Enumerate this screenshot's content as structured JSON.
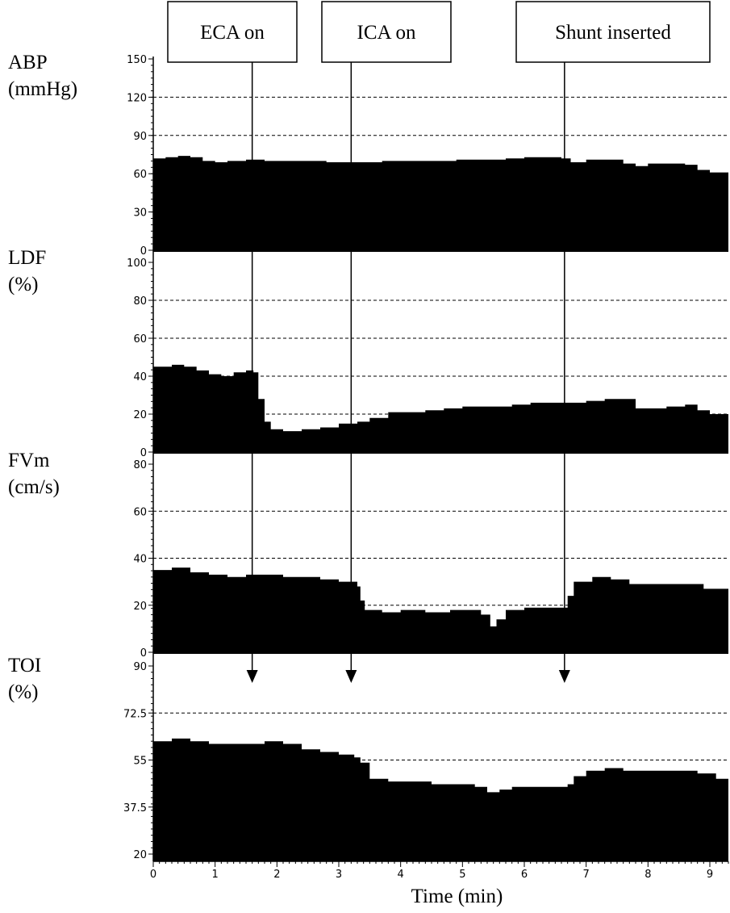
{
  "chart_data": {
    "type": "area",
    "xlabel": "Time (min)",
    "xlim": [
      0,
      9.3
    ],
    "x_ticks": [
      "0",
      "1",
      "2",
      "3",
      "4",
      "5",
      "6",
      "7",
      "8",
      "9"
    ],
    "events": [
      {
        "label": "ECA on",
        "t": 1.6
      },
      {
        "label": "ICA on",
        "t": 3.2
      },
      {
        "label": "Shunt inserted",
        "t": 6.65
      }
    ],
    "panels": [
      {
        "label_line1": "ABP",
        "label_line2": "(mmHg)",
        "ylim": [
          0,
          150
        ],
        "y_ticks": [
          "0",
          "30",
          "60",
          "90",
          "120",
          "150"
        ],
        "grid_values": [
          60,
          90,
          120
        ],
        "series": [
          {
            "t": 0,
            "v": 72
          },
          {
            "t": 0.2,
            "v": 73
          },
          {
            "t": 0.4,
            "v": 74
          },
          {
            "t": 0.6,
            "v": 73
          },
          {
            "t": 0.8,
            "v": 70
          },
          {
            "t": 1.0,
            "v": 69
          },
          {
            "t": 1.2,
            "v": 70
          },
          {
            "t": 1.5,
            "v": 71
          },
          {
            "t": 1.8,
            "v": 70
          },
          {
            "t": 2.1,
            "v": 70
          },
          {
            "t": 2.4,
            "v": 70
          },
          {
            "t": 2.8,
            "v": 69
          },
          {
            "t": 3.1,
            "v": 69
          },
          {
            "t": 3.4,
            "v": 69
          },
          {
            "t": 3.7,
            "v": 70
          },
          {
            "t": 4.1,
            "v": 70
          },
          {
            "t": 4.5,
            "v": 70
          },
          {
            "t": 4.9,
            "v": 71
          },
          {
            "t": 5.3,
            "v": 71
          },
          {
            "t": 5.7,
            "v": 72
          },
          {
            "t": 6.0,
            "v": 73
          },
          {
            "t": 6.3,
            "v": 73
          },
          {
            "t": 6.6,
            "v": 72
          },
          {
            "t": 6.75,
            "v": 69
          },
          {
            "t": 7.0,
            "v": 71
          },
          {
            "t": 7.3,
            "v": 71
          },
          {
            "t": 7.6,
            "v": 68
          },
          {
            "t": 7.8,
            "v": 66
          },
          {
            "t": 8.0,
            "v": 68
          },
          {
            "t": 8.3,
            "v": 68
          },
          {
            "t": 8.6,
            "v": 67
          },
          {
            "t": 8.8,
            "v": 63
          },
          {
            "t": 9.0,
            "v": 61
          },
          {
            "t": 9.3,
            "v": 60
          }
        ]
      },
      {
        "label_line1": "LDF",
        "label_line2": "(%)",
        "ylim": [
          0,
          100
        ],
        "y_ticks": [
          "0",
          "20",
          "40",
          "60",
          "80",
          "100"
        ],
        "grid_values": [
          20,
          40,
          60,
          80
        ],
        "series": [
          {
            "t": 0,
            "v": 45
          },
          {
            "t": 0.3,
            "v": 46
          },
          {
            "t": 0.5,
            "v": 45
          },
          {
            "t": 0.7,
            "v": 43
          },
          {
            "t": 0.9,
            "v": 41
          },
          {
            "t": 1.1,
            "v": 40
          },
          {
            "t": 1.3,
            "v": 42
          },
          {
            "t": 1.5,
            "v": 43
          },
          {
            "t": 1.62,
            "v": 42
          },
          {
            "t": 1.7,
            "v": 28
          },
          {
            "t": 1.8,
            "v": 16
          },
          {
            "t": 1.9,
            "v": 12
          },
          {
            "t": 2.1,
            "v": 11
          },
          {
            "t": 2.4,
            "v": 12
          },
          {
            "t": 2.7,
            "v": 13
          },
          {
            "t": 3.0,
            "v": 15
          },
          {
            "t": 3.3,
            "v": 16
          },
          {
            "t": 3.5,
            "v": 18
          },
          {
            "t": 3.8,
            "v": 21
          },
          {
            "t": 4.1,
            "v": 21
          },
          {
            "t": 4.4,
            "v": 22
          },
          {
            "t": 4.7,
            "v": 23
          },
          {
            "t": 5.0,
            "v": 24
          },
          {
            "t": 5.4,
            "v": 24
          },
          {
            "t": 5.8,
            "v": 25
          },
          {
            "t": 6.1,
            "v": 26
          },
          {
            "t": 6.4,
            "v": 26
          },
          {
            "t": 6.7,
            "v": 26
          },
          {
            "t": 7.0,
            "v": 27
          },
          {
            "t": 7.3,
            "v": 28
          },
          {
            "t": 7.5,
            "v": 28
          },
          {
            "t": 7.8,
            "v": 23
          },
          {
            "t": 8.0,
            "v": 23
          },
          {
            "t": 8.3,
            "v": 24
          },
          {
            "t": 8.6,
            "v": 25
          },
          {
            "t": 8.8,
            "v": 22
          },
          {
            "t": 9.0,
            "v": 20
          },
          {
            "t": 9.3,
            "v": 20
          }
        ]
      },
      {
        "label_line1": "FVm",
        "label_line2": "(cm/s)",
        "ylim": [
          0,
          80
        ],
        "y_ticks": [
          "0",
          "20",
          "40",
          "60",
          "80"
        ],
        "grid_values": [
          20,
          40,
          60
        ],
        "series": [
          {
            "t": 0,
            "v": 35
          },
          {
            "t": 0.3,
            "v": 36
          },
          {
            "t": 0.6,
            "v": 34
          },
          {
            "t": 0.9,
            "v": 33
          },
          {
            "t": 1.2,
            "v": 32
          },
          {
            "t": 1.5,
            "v": 33
          },
          {
            "t": 1.8,
            "v": 33
          },
          {
            "t": 2.1,
            "v": 32
          },
          {
            "t": 2.4,
            "v": 32
          },
          {
            "t": 2.7,
            "v": 31
          },
          {
            "t": 3.0,
            "v": 30
          },
          {
            "t": 3.2,
            "v": 30
          },
          {
            "t": 3.3,
            "v": 28
          },
          {
            "t": 3.35,
            "v": 22
          },
          {
            "t": 3.42,
            "v": 18
          },
          {
            "t": 3.7,
            "v": 17
          },
          {
            "t": 4.0,
            "v": 18
          },
          {
            "t": 4.4,
            "v": 17
          },
          {
            "t": 4.8,
            "v": 18
          },
          {
            "t": 5.1,
            "v": 18
          },
          {
            "t": 5.3,
            "v": 16
          },
          {
            "t": 5.45,
            "v": 11
          },
          {
            "t": 5.55,
            "v": 14
          },
          {
            "t": 5.7,
            "v": 18
          },
          {
            "t": 6.0,
            "v": 19
          },
          {
            "t": 6.4,
            "v": 19
          },
          {
            "t": 6.63,
            "v": 19
          },
          {
            "t": 6.7,
            "v": 24
          },
          {
            "t": 6.8,
            "v": 30
          },
          {
            "t": 7.1,
            "v": 32
          },
          {
            "t": 7.4,
            "v": 31
          },
          {
            "t": 7.7,
            "v": 29
          },
          {
            "t": 8.0,
            "v": 29
          },
          {
            "t": 8.3,
            "v": 29
          },
          {
            "t": 8.6,
            "v": 29
          },
          {
            "t": 8.9,
            "v": 27
          },
          {
            "t": 9.3,
            "v": 26
          }
        ]
      },
      {
        "label_line1": "TOI",
        "label_line2": "(%)",
        "ylim": [
          20,
          90
        ],
        "y_ticks": [
          "20",
          "37.5",
          "55",
          "72.5",
          "90"
        ],
        "grid_values": [
          55,
          72.5
        ],
        "series": [
          {
            "t": 0,
            "v": 62
          },
          {
            "t": 0.3,
            "v": 63
          },
          {
            "t": 0.6,
            "v": 62
          },
          {
            "t": 0.9,
            "v": 61
          },
          {
            "t": 1.2,
            "v": 61
          },
          {
            "t": 1.5,
            "v": 61
          },
          {
            "t": 1.8,
            "v": 62
          },
          {
            "t": 2.1,
            "v": 61
          },
          {
            "t": 2.4,
            "v": 59
          },
          {
            "t": 2.7,
            "v": 58
          },
          {
            "t": 3.0,
            "v": 57
          },
          {
            "t": 3.25,
            "v": 56
          },
          {
            "t": 3.35,
            "v": 54
          },
          {
            "t": 3.5,
            "v": 48
          },
          {
            "t": 3.8,
            "v": 47
          },
          {
            "t": 4.1,
            "v": 47
          },
          {
            "t": 4.5,
            "v": 46
          },
          {
            "t": 4.9,
            "v": 46
          },
          {
            "t": 5.2,
            "v": 45
          },
          {
            "t": 5.4,
            "v": 43
          },
          {
            "t": 5.6,
            "v": 44
          },
          {
            "t": 5.8,
            "v": 45
          },
          {
            "t": 6.1,
            "v": 45
          },
          {
            "t": 6.4,
            "v": 45
          },
          {
            "t": 6.7,
            "v": 46
          },
          {
            "t": 6.8,
            "v": 49
          },
          {
            "t": 7.0,
            "v": 51
          },
          {
            "t": 7.3,
            "v": 52
          },
          {
            "t": 7.6,
            "v": 51
          },
          {
            "t": 7.9,
            "v": 51
          },
          {
            "t": 8.2,
            "v": 51
          },
          {
            "t": 8.5,
            "v": 51
          },
          {
            "t": 8.8,
            "v": 50
          },
          {
            "t": 9.1,
            "v": 48
          },
          {
            "t": 9.3,
            "v": 48
          }
        ]
      }
    ]
  }
}
